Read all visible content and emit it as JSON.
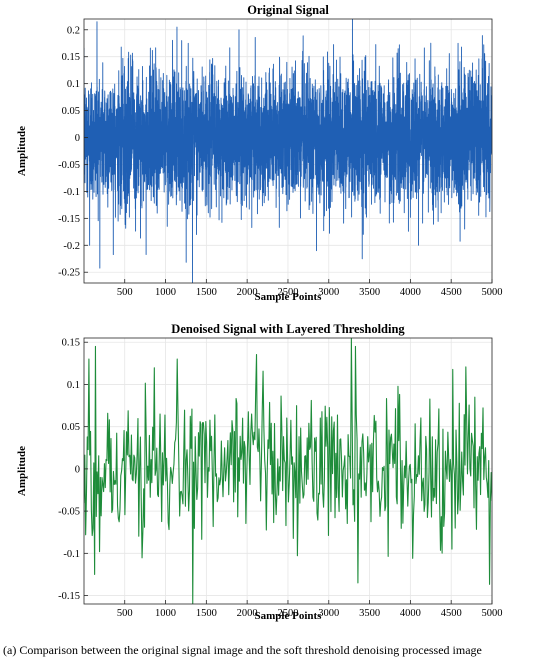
{
  "caption": "(a) Comparison between the original signal image and the soft threshold denoising processed image",
  "chart_data": [
    {
      "type": "line",
      "title": "Original Signal",
      "xlabel": "Sample Points",
      "ylabel": "Amplitude",
      "xlim": [
        1,
        5000
      ],
      "ylim": [
        -0.27,
        0.22
      ],
      "xticks": [
        500,
        1000,
        1500,
        2000,
        2500,
        3000,
        3500,
        4000,
        4500,
        5000
      ],
      "yticks": [
        -0.25,
        -0.2,
        -0.15,
        -0.1,
        -0.05,
        0,
        0.05,
        0.1,
        0.15,
        0.2
      ],
      "ytick_labels": [
        "-0.25",
        "-0.2",
        "-0.15",
        "-0.1",
        "-0.05",
        "0",
        "0.05",
        "0.1",
        "0.15",
        "0.2"
      ],
      "grid": true,
      "color": "#1f5fb4",
      "series": [
        {
          "n_points": 5000,
          "mean": 0.0,
          "std_approx": 0.06,
          "y_max": 0.22,
          "y_min": -0.27,
          "extremes": [
            {
              "x": 1330,
              "y": -0.27
            },
            {
              "x": 3290,
              "y": 0.22
            },
            {
              "x": 160,
              "y": 0.215
            },
            {
              "x": 1140,
              "y": 0.205
            },
            {
              "x": 3410,
              "y": -0.225
            },
            {
              "x": 70,
              "y": -0.2
            },
            {
              "x": 2850,
              "y": -0.21
            },
            {
              "x": 1900,
              "y": 0.2
            },
            {
              "x": 4100,
              "y": -0.2
            },
            {
              "x": 4250,
              "y": 0.175
            }
          ]
        }
      ]
    },
    {
      "type": "line",
      "title": "Denoised Signal with Layered Thresholding",
      "xlabel": "Sample Points",
      "ylabel": "Amplitude",
      "xlim": [
        1,
        5000
      ],
      "ylim": [
        -0.16,
        0.155
      ],
      "xticks": [
        500,
        1000,
        1500,
        2000,
        2500,
        3000,
        3500,
        4000,
        4500,
        5000
      ],
      "yticks": [
        -0.15,
        -0.1,
        -0.05,
        0,
        0.05,
        0.1,
        0.15
      ],
      "ytick_labels": [
        "-0.15",
        "-0.1",
        "-0.05",
        "0",
        "0.05",
        "0.1",
        "0.15"
      ],
      "grid": true,
      "color": "#1e8c3a",
      "series": [
        {
          "n_points": 500,
          "mean": 0.0,
          "std_approx": 0.045,
          "y_max": 0.155,
          "y_min": -0.16,
          "extremes": [
            {
              "x": 1330,
              "y": -0.16
            },
            {
              "x": 3280,
              "y": 0.155
            },
            {
              "x": 140,
              "y": 0.145
            },
            {
              "x": 130,
              "y": -0.125
            },
            {
              "x": 3330,
              "y": 0.145
            },
            {
              "x": 1140,
              "y": 0.13
            },
            {
              "x": 3360,
              "y": -0.135
            },
            {
              "x": 60,
              "y": 0.13
            }
          ]
        }
      ]
    }
  ]
}
